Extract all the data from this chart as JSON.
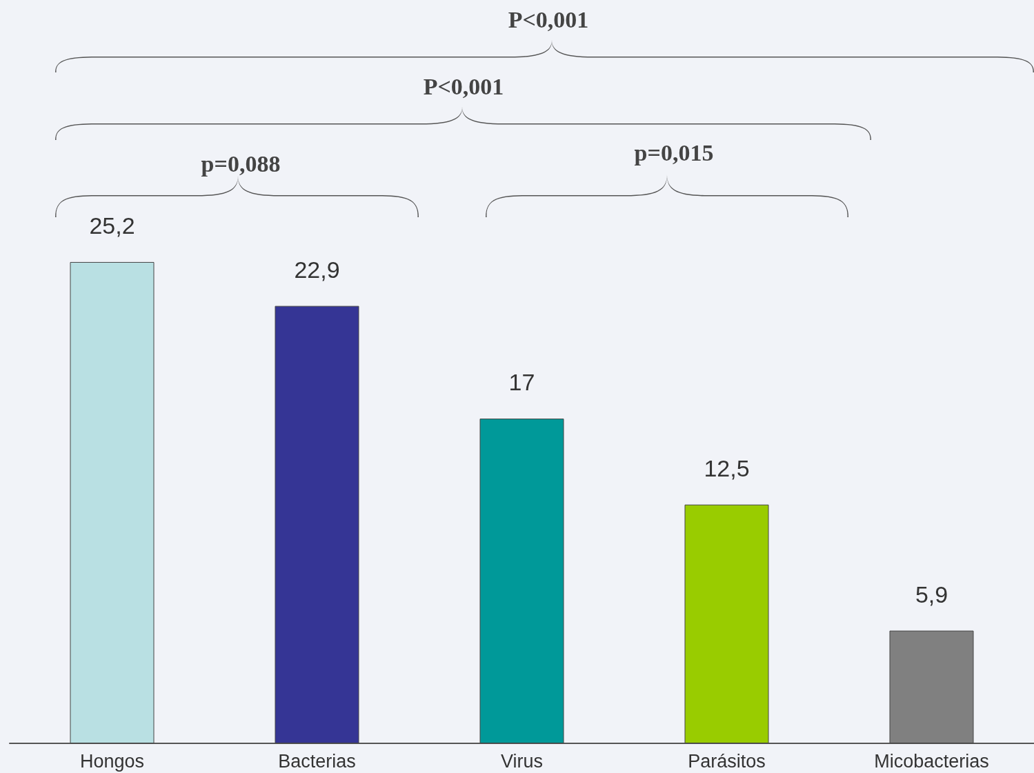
{
  "chart_data": {
    "type": "bar",
    "categories": [
      "Hongos",
      "Bacterias",
      "Virus",
      "Parásitos",
      "Micobacterias"
    ],
    "values": [
      25.2,
      22.9,
      17,
      12.5,
      5.9
    ],
    "colors": [
      "#b9e0e3",
      "#353595",
      "#009999",
      "#99cc00",
      "#808080"
    ],
    "value_labels": [
      "25,2",
      "22,9",
      "17",
      "12,5",
      "5,9"
    ],
    "annotations": [
      "p=0,088",
      "p=0,015",
      "P<0,001",
      "P<0,001"
    ]
  }
}
